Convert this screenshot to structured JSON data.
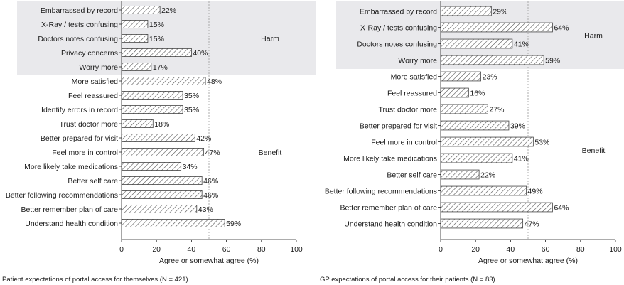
{
  "chart_data": [
    {
      "type": "bar",
      "orientation": "horizontal",
      "caption": "Patient expectations of portal access for themselves (N = 421)",
      "xlabel": "Agree or somewhat agree (%)",
      "xlim": [
        0,
        100
      ],
      "xticks": [
        0,
        20,
        40,
        60,
        80,
        100
      ],
      "reference_line": 50,
      "value_suffix": "%",
      "groups": [
        {
          "name": "Harm",
          "categories": [
            "Embarrassed by record",
            "X-Ray / tests confusing",
            "Doctors notes confusing",
            "Privacy concerns",
            "Worry more"
          ]
        },
        {
          "name": "Benefit",
          "categories": [
            "More satisfied",
            "Feel reassured",
            "Identify errors in record",
            "Trust doctor more",
            "Better prepared for visit",
            "Feel more in control",
            "More likely take medications",
            "Better self care",
            "Better following recommendations",
            "Better remember plan of care",
            "Understand health condition"
          ]
        }
      ],
      "categories": [
        "Embarrassed by record",
        "X-Ray / tests confusing",
        "Doctors notes confusing",
        "Privacy concerns",
        "Worry more",
        "More satisfied",
        "Feel reassured",
        "Identify errors in record",
        "Trust doctor more",
        "Better prepared for visit",
        "Feel more in control",
        "More likely take medications",
        "Better self care",
        "Better following recommendations",
        "Better remember plan of care",
        "Understand health condition"
      ],
      "values": [
        22,
        15,
        15,
        40,
        17,
        48,
        35,
        35,
        18,
        42,
        47,
        34,
        46,
        46,
        43,
        59
      ]
    },
    {
      "type": "bar",
      "orientation": "horizontal",
      "caption": "GP expectations of portal access for their patients (N = 83)",
      "xlabel": "Agree or somewhat agree (%)",
      "xlim": [
        0,
        100
      ],
      "xticks": [
        0,
        20,
        40,
        60,
        80,
        100
      ],
      "reference_line": 50,
      "value_suffix": "%",
      "groups": [
        {
          "name": "Harm",
          "categories": [
            "Embarrassed by record",
            "X-Ray / tests confusing",
            "Doctors notes confusing",
            "Worry more"
          ]
        },
        {
          "name": "Benefit",
          "categories": [
            "More satisfied",
            "Feel reassured",
            "Trust doctor more",
            "Better prepared for visit",
            "Feel more in control",
            "More likely take medications",
            "Better self care",
            "Better following recommendations",
            "Better remember plan of care",
            "Understand health condition"
          ]
        }
      ],
      "categories": [
        "Embarrassed by record",
        "X-Ray / tests confusing",
        "Doctors notes confusing",
        "Worry more",
        "More satisfied",
        "Feel reassured",
        "Trust doctor more",
        "Better prepared for visit",
        "Feel more in control",
        "More likely take medications",
        "Better self care",
        "Better following recommendations",
        "Better remember plan of care",
        "Understand health condition"
      ],
      "values": [
        29,
        64,
        41,
        59,
        23,
        16,
        27,
        39,
        53,
        41,
        22,
        49,
        64,
        47
      ]
    }
  ],
  "colors": {
    "harm_band": "#e9e9ec",
    "bar_fill": "#ffffff",
    "bar_stroke": "#444444",
    "hatch": "#555555",
    "axis": "#222222",
    "reference_line": "#9a9a9a"
  }
}
